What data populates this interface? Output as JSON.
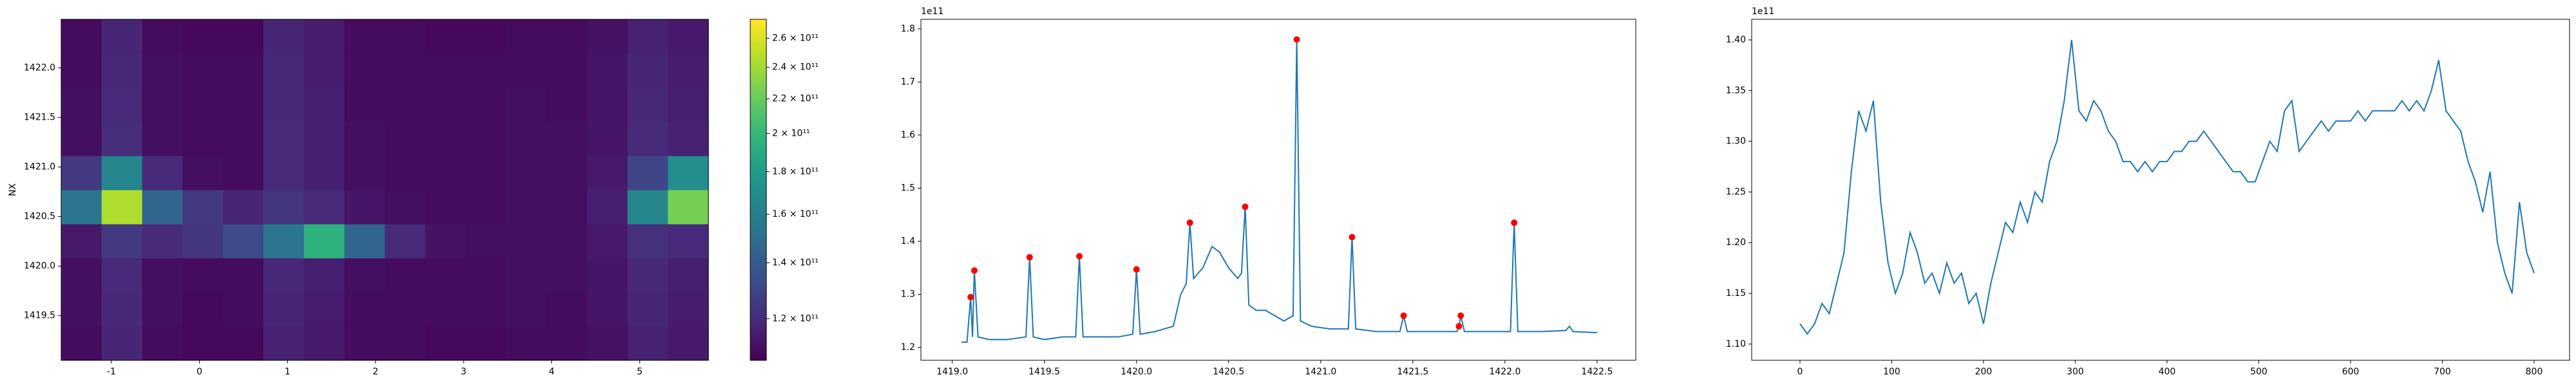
{
  "chart_data": [
    {
      "type": "heatmap",
      "ylabel": "NX",
      "xlim": [
        -1.57,
        5.78
      ],
      "ylim": [
        1419.05,
        1422.49
      ],
      "xticks": [
        -1,
        0,
        1,
        2,
        3,
        4,
        5
      ],
      "yticks": [
        {
          "value": 1419.5,
          "label": "1419.5"
        },
        {
          "value": 1420.0,
          "label": "1420.0"
        },
        {
          "value": 1420.5,
          "label": "1420.5"
        },
        {
          "value": 1421.0,
          "label": "1421.0"
        },
        {
          "value": 1421.5,
          "label": "1421.5"
        },
        {
          "value": 1422.0,
          "label": "1422.0"
        }
      ],
      "colormap": "viridis",
      "color_scale": "log",
      "clim": [
        107000000000.0,
        274000000000.0
      ],
      "colorbar_ticks": [
        {
          "value": 120000000000.0,
          "label": "1.2 × 10¹¹"
        },
        {
          "value": 140000000000.0,
          "label": "1.4 × 10¹¹"
        },
        {
          "value": 160000000000.0,
          "label": "1.6 × 10¹¹"
        },
        {
          "value": 180000000000.0,
          "label": "1.8 × 10¹¹"
        },
        {
          "value": 200000000000.0,
          "label": "2 × 10¹¹"
        },
        {
          "value": 220000000000.0,
          "label": "2.2 × 10¹¹"
        },
        {
          "value": 240000000000.0,
          "label": "2.4 × 10¹¹"
        },
        {
          "value": 260000000000.0,
          "label": "2.6 × 10¹¹"
        }
      ],
      "z": [
        [
          110000000000.0,
          118000000000.0,
          110000000000.0,
          109000000000.0,
          109000000000.0,
          117000000000.0,
          114000000000.0,
          110000000000.0,
          110000000000.0,
          109000000000.0,
          109000000000.0,
          110000000000.0,
          110000000000.0,
          112000000000.0,
          117000000000.0,
          114000000000.0
        ],
        [
          111000000000.0,
          119000000000.0,
          111000000000.0,
          109000000000.0,
          110000000000.0,
          118000000000.0,
          115000000000.0,
          110000000000.0,
          110000000000.0,
          110000000000.0,
          110000000000.0,
          111000000000.0,
          110000000000.0,
          113000000000.0,
          118000000000.0,
          115000000000.0
        ],
        [
          111000000000.0,
          120000000000.0,
          111000000000.0,
          110000000000.0,
          110000000000.0,
          119000000000.0,
          116000000000.0,
          111000000000.0,
          110000000000.0,
          110000000000.0,
          110000000000.0,
          111000000000.0,
          111000000000.0,
          113000000000.0,
          119000000000.0,
          116000000000.0
        ],
        [
          114000000000.0,
          125000000000.0,
          120000000000.0,
          124000000000.0,
          132000000000.0,
          155000000000.0,
          195000000000.0,
          145000000000.0,
          120000000000.0,
          112000000000.0,
          111000000000.0,
          111000000000.0,
          111000000000.0,
          114000000000.0,
          122000000000.0,
          120000000000.0
        ],
        [
          155000000000.0,
          245000000000.0,
          145000000000.0,
          125000000000.0,
          118000000000.0,
          124000000000.0,
          120000000000.0,
          113000000000.0,
          111000000000.0,
          110000000000.0,
          110000000000.0,
          111000000000.0,
          111000000000.0,
          116000000000.0,
          165000000000.0,
          225000000000.0
        ],
        [
          125000000000.0,
          165000000000.0,
          120000000000.0,
          111000000000.0,
          110000000000.0,
          120000000000.0,
          116000000000.0,
          111000000000.0,
          110000000000.0,
          110000000000.0,
          110000000000.0,
          111000000000.0,
          111000000000.0,
          114000000000.0,
          130000000000.0,
          170000000000.0
        ],
        [
          111000000000.0,
          121000000000.0,
          111000000000.0,
          110000000000.0,
          110000000000.0,
          120000000000.0,
          116000000000.0,
          111000000000.0,
          110000000000.0,
          110000000000.0,
          110000000000.0,
          111000000000.0,
          111000000000.0,
          113000000000.0,
          120000000000.0,
          117000000000.0
        ],
        [
          111000000000.0,
          120000000000.0,
          111000000000.0,
          110000000000.0,
          110000000000.0,
          119000000000.0,
          116000000000.0,
          110000000000.0,
          110000000000.0,
          110000000000.0,
          110000000000.0,
          111000000000.0,
          110000000000.0,
          113000000000.0,
          119000000000.0,
          116000000000.0
        ],
        [
          110000000000.0,
          119000000000.0,
          111000000000.0,
          110000000000.0,
          110000000000.0,
          119000000000.0,
          115000000000.0,
          110000000000.0,
          110000000000.0,
          110000000000.0,
          110000000000.0,
          110000000000.0,
          110000000000.0,
          113000000000.0,
          118000000000.0,
          115000000000.0
        ],
        [
          110000000000.0,
          118000000000.0,
          110000000000.0,
          109000000000.0,
          109000000000.0,
          118000000000.0,
          115000000000.0,
          110000000000.0,
          110000000000.0,
          109000000000.0,
          109000000000.0,
          110000000000.0,
          110000000000.0,
          112000000000.0,
          117000000000.0,
          114000000000.0
        ]
      ]
    },
    {
      "type": "line",
      "offset_text": "1e11",
      "color": "#1f77b4",
      "xlim": [
        1418.83,
        1422.71
      ],
      "ylim": [
        1.176,
        1.818
      ],
      "xticks": [
        {
          "value": 1419.0,
          "label": "1419.0"
        },
        {
          "value": 1419.5,
          "label": "1419.5"
        },
        {
          "value": 1420.0,
          "label": "1420.0"
        },
        {
          "value": 1420.5,
          "label": "1420.5"
        },
        {
          "value": 1421.0,
          "label": "1421.0"
        },
        {
          "value": 1421.5,
          "label": "1421.5"
        },
        {
          "value": 1422.0,
          "label": "1422.0"
        },
        {
          "value": 1422.5,
          "label": "1422.5"
        }
      ],
      "yticks": [
        1.2,
        1.3,
        1.4,
        1.5,
        1.6,
        1.7,
        1.8
      ],
      "x": [
        1419.05,
        1419.08,
        1419.1,
        1419.11,
        1419.12,
        1419.14,
        1419.2,
        1419.3,
        1419.4,
        1419.42,
        1419.44,
        1419.5,
        1419.6,
        1419.67,
        1419.69,
        1419.71,
        1419.8,
        1419.9,
        1419.98,
        1420.0,
        1420.02,
        1420.1,
        1420.2,
        1420.24,
        1420.27,
        1420.29,
        1420.31,
        1420.36,
        1420.41,
        1420.45,
        1420.5,
        1420.55,
        1420.57,
        1420.59,
        1420.61,
        1420.65,
        1420.7,
        1420.75,
        1420.8,
        1420.85,
        1420.87,
        1420.89,
        1420.95,
        1421.05,
        1421.15,
        1421.17,
        1421.19,
        1421.3,
        1421.43,
        1421.45,
        1421.47,
        1421.6,
        1421.74,
        1421.75,
        1421.76,
        1421.78,
        1421.9,
        1422.03,
        1422.05,
        1422.07,
        1422.2,
        1422.33,
        1422.35,
        1422.37,
        1422.5
      ],
      "values": [
        1.21,
        1.21,
        1.295,
        1.22,
        1.345,
        1.22,
        1.215,
        1.215,
        1.22,
        1.37,
        1.22,
        1.215,
        1.22,
        1.22,
        1.372,
        1.22,
        1.22,
        1.22,
        1.225,
        1.347,
        1.225,
        1.23,
        1.24,
        1.3,
        1.32,
        1.435,
        1.33,
        1.35,
        1.39,
        1.38,
        1.35,
        1.33,
        1.34,
        1.465,
        1.28,
        1.27,
        1.27,
        1.26,
        1.25,
        1.26,
        1.78,
        1.25,
        1.24,
        1.235,
        1.235,
        1.408,
        1.235,
        1.23,
        1.23,
        1.26,
        1.23,
        1.23,
        1.23,
        1.24,
        1.26,
        1.23,
        1.23,
        1.23,
        1.435,
        1.23,
        1.23,
        1.232,
        1.24,
        1.23,
        1.228
      ],
      "peaks": {
        "color": "#ff0000",
        "x": [
          1419.1,
          1419.12,
          1419.42,
          1419.69,
          1420.0,
          1420.29,
          1420.59,
          1420.87,
          1421.17,
          1421.45,
          1421.75,
          1421.76,
          1422.05
        ],
        "values": [
          1.295,
          1.345,
          1.37,
          1.372,
          1.347,
          1.435,
          1.465,
          1.78,
          1.408,
          1.26,
          1.24,
          1.26,
          1.435
        ]
      }
    },
    {
      "type": "line",
      "offset_text": "1e11",
      "color": "#1f77b4",
      "xlim": [
        -52.6,
        838.6
      ],
      "ylim": [
        1.084,
        1.4203
      ],
      "xticks": [
        0,
        100,
        200,
        300,
        400,
        500,
        600,
        700,
        800
      ],
      "yticks": [
        {
          "value": 1.1,
          "label": "1.10"
        },
        {
          "value": 1.15,
          "label": "1.15"
        },
        {
          "value": 1.2,
          "label": "1.20"
        },
        {
          "value": 1.25,
          "label": "1.25"
        },
        {
          "value": 1.3,
          "label": "1.30"
        },
        {
          "value": 1.35,
          "label": "1.35"
        },
        {
          "value": 1.4,
          "label": "1.40"
        }
      ],
      "x": [
        0,
        8,
        16,
        24,
        32,
        40,
        48,
        56,
        64,
        72,
        80,
        88,
        96,
        104,
        112,
        120,
        128,
        136,
        144,
        152,
        160,
        168,
        176,
        184,
        192,
        200,
        208,
        216,
        224,
        232,
        240,
        248,
        256,
        264,
        272,
        280,
        288,
        296,
        304,
        312,
        320,
        328,
        336,
        344,
        352,
        360,
        368,
        376,
        384,
        392,
        400,
        408,
        416,
        424,
        432,
        440,
        448,
        456,
        464,
        472,
        480,
        488,
        496,
        504,
        512,
        520,
        528,
        536,
        544,
        552,
        560,
        568,
        576,
        584,
        592,
        600,
        608,
        616,
        624,
        632,
        640,
        648,
        656,
        664,
        672,
        680,
        688,
        696,
        704,
        712,
        720,
        728,
        736,
        744,
        752,
        760,
        768,
        776,
        784,
        792,
        800
      ],
      "values": [
        1.12,
        1.11,
        1.12,
        1.14,
        1.13,
        1.16,
        1.19,
        1.27,
        1.33,
        1.31,
        1.34,
        1.24,
        1.18,
        1.15,
        1.17,
        1.21,
        1.19,
        1.16,
        1.17,
        1.15,
        1.18,
        1.16,
        1.17,
        1.14,
        1.15,
        1.12,
        1.16,
        1.19,
        1.22,
        1.21,
        1.24,
        1.22,
        1.25,
        1.24,
        1.28,
        1.3,
        1.34,
        1.4,
        1.33,
        1.32,
        1.34,
        1.33,
        1.31,
        1.3,
        1.28,
        1.28,
        1.27,
        1.28,
        1.27,
        1.28,
        1.28,
        1.29,
        1.29,
        1.3,
        1.3,
        1.31,
        1.3,
        1.29,
        1.28,
        1.27,
        1.27,
        1.26,
        1.26,
        1.28,
        1.3,
        1.29,
        1.33,
        1.34,
        1.29,
        1.3,
        1.31,
        1.32,
        1.31,
        1.32,
        1.32,
        1.32,
        1.33,
        1.32,
        1.33,
        1.33,
        1.33,
        1.33,
        1.34,
        1.33,
        1.34,
        1.33,
        1.35,
        1.38,
        1.33,
        1.32,
        1.31,
        1.28,
        1.26,
        1.23,
        1.27,
        1.2,
        1.17,
        1.15,
        1.24,
        1.19,
        1.17
      ]
    }
  ]
}
